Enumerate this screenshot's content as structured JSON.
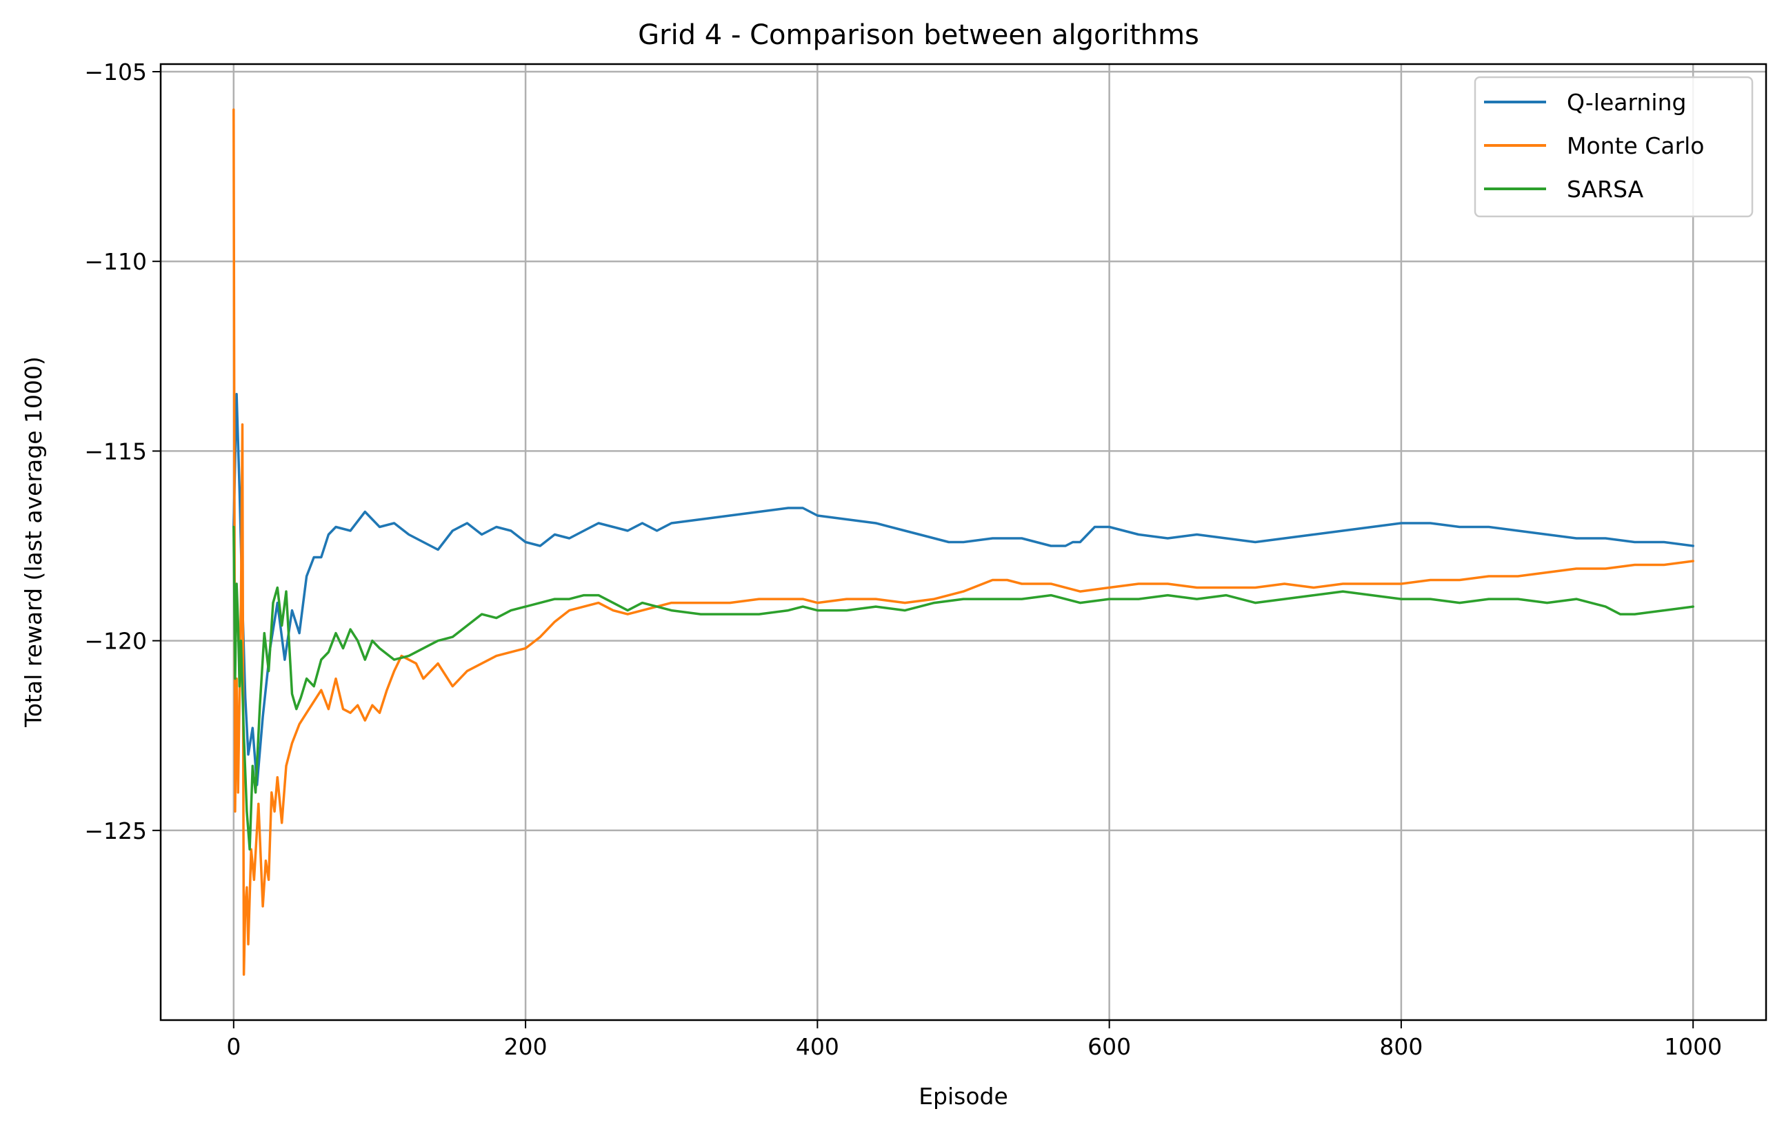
{
  "chart_data": {
    "type": "line",
    "title": "Grid 4 - Comparison between algorithms",
    "xlabel": "Episode",
    "ylabel": "Total reward (last average 1000)",
    "xlim": [
      -50,
      1050
    ],
    "ylim": [
      -130,
      -104.8
    ],
    "xticks": [
      0,
      200,
      400,
      600,
      800,
      1000
    ],
    "xtick_labels": [
      "0",
      "200",
      "400",
      "600",
      "800",
      "1000"
    ],
    "yticks": [
      -105,
      -110,
      -115,
      -120,
      -125
    ],
    "ytick_labels": [
      "−105",
      "−110",
      "−115",
      "−120",
      "−125"
    ],
    "grid": true,
    "legend_position": "top-right",
    "series": [
      {
        "name": "Q-learning",
        "color": "#1f77b4",
        "x": [
          0,
          2,
          4,
          6,
          8,
          10,
          13,
          16,
          20,
          25,
          30,
          35,
          40,
          45,
          50,
          55,
          60,
          65,
          70,
          80,
          90,
          95,
          100,
          110,
          120,
          130,
          140,
          150,
          160,
          170,
          180,
          190,
          200,
          210,
          220,
          230,
          240,
          250,
          260,
          270,
          280,
          290,
          300,
          320,
          340,
          360,
          380,
          390,
          400,
          420,
          440,
          460,
          480,
          490,
          500,
          520,
          540,
          560,
          570,
          575,
          580,
          590,
          600,
          620,
          640,
          660,
          680,
          700,
          720,
          740,
          760,
          780,
          800,
          820,
          840,
          860,
          880,
          900,
          920,
          940,
          960,
          980,
          1000
        ],
        "values": [
          -117,
          -113.5,
          -116,
          -119,
          -121.5,
          -123,
          -122.3,
          -123.8,
          -122,
          -120.2,
          -119,
          -120.5,
          -119.2,
          -119.8,
          -118.3,
          -117.8,
          -117.8,
          -117.2,
          -117,
          -117.1,
          -116.6,
          -116.8,
          -117,
          -116.9,
          -117.2,
          -117.4,
          -117.6,
          -117.1,
          -116.9,
          -117.2,
          -117,
          -117.1,
          -117.4,
          -117.5,
          -117.2,
          -117.3,
          -117.1,
          -116.9,
          -117.0,
          -117.1,
          -116.9,
          -117.1,
          -116.9,
          -116.8,
          -116.7,
          -116.6,
          -116.5,
          -116.5,
          -116.7,
          -116.8,
          -116.9,
          -117.1,
          -117.3,
          -117.4,
          -117.4,
          -117.3,
          -117.3,
          -117.5,
          -117.5,
          -117.4,
          -117.4,
          -117.0,
          -117.0,
          -117.2,
          -117.3,
          -117.2,
          -117.3,
          -117.4,
          -117.3,
          -117.2,
          -117.1,
          -117.0,
          -116.9,
          -116.9,
          -117.0,
          -117.0,
          -117.1,
          -117.2,
          -117.3,
          -117.3,
          -117.4,
          -117.4,
          -117.5
        ]
      },
      {
        "name": "Monte Carlo",
        "color": "#ff7f0e",
        "x": [
          0,
          1,
          2,
          3,
          5,
          6,
          7,
          8,
          9,
          10,
          12,
          14,
          17,
          20,
          22,
          24,
          26,
          28,
          30,
          33,
          36,
          40,
          45,
          50,
          55,
          60,
          65,
          70,
          75,
          80,
          85,
          90,
          95,
          100,
          105,
          110,
          115,
          120,
          125,
          130,
          140,
          150,
          160,
          170,
          180,
          190,
          200,
          210,
          220,
          230,
          240,
          250,
          260,
          270,
          280,
          290,
          300,
          320,
          340,
          360,
          380,
          390,
          400,
          420,
          440,
          460,
          480,
          500,
          520,
          530,
          540,
          560,
          580,
          600,
          620,
          640,
          660,
          680,
          700,
          720,
          740,
          760,
          780,
          800,
          820,
          840,
          860,
          880,
          900,
          920,
          940,
          960,
          980,
          1000
        ],
        "values": [
          -106,
          -124.5,
          -121,
          -124,
          -119,
          -114.3,
          -128.8,
          -127,
          -126.5,
          -128,
          -125.5,
          -126.3,
          -124.3,
          -127,
          -125.8,
          -126.3,
          -124,
          -124.5,
          -123.6,
          -124.8,
          -123.3,
          -122.7,
          -122.2,
          -121.9,
          -121.6,
          -121.3,
          -121.8,
          -121.0,
          -121.8,
          -121.9,
          -121.7,
          -122.1,
          -121.7,
          -121.9,
          -121.3,
          -120.8,
          -120.4,
          -120.5,
          -120.6,
          -121.0,
          -120.6,
          -121.2,
          -120.8,
          -120.6,
          -120.4,
          -120.3,
          -120.2,
          -119.9,
          -119.5,
          -119.2,
          -119.1,
          -119.0,
          -119.2,
          -119.3,
          -119.2,
          -119.1,
          -119.0,
          -119.0,
          -119.0,
          -118.9,
          -118.9,
          -118.9,
          -119.0,
          -118.9,
          -118.9,
          -119.0,
          -118.9,
          -118.7,
          -118.4,
          -118.4,
          -118.5,
          -118.5,
          -118.7,
          -118.6,
          -118.5,
          -118.5,
          -118.6,
          -118.6,
          -118.6,
          -118.5,
          -118.6,
          -118.5,
          -118.5,
          -118.5,
          -118.4,
          -118.4,
          -118.3,
          -118.3,
          -118.2,
          -118.1,
          -118.1,
          -118.0,
          -118.0,
          -117.9
        ]
      },
      {
        "name": "SARSA",
        "color": "#2ca02c",
        "x": [
          0,
          1,
          2,
          3,
          4,
          5,
          7,
          9,
          11,
          13,
          15,
          18,
          21,
          24,
          27,
          30,
          33,
          36,
          40,
          43,
          46,
          50,
          55,
          60,
          65,
          70,
          75,
          80,
          85,
          90,
          95,
          100,
          110,
          120,
          130,
          140,
          150,
          160,
          170,
          180,
          190,
          200,
          210,
          220,
          230,
          240,
          250,
          260,
          270,
          280,
          290,
          300,
          320,
          340,
          360,
          380,
          390,
          400,
          420,
          440,
          460,
          480,
          500,
          520,
          540,
          560,
          580,
          600,
          620,
          640,
          660,
          680,
          700,
          720,
          740,
          760,
          780,
          800,
          820,
          840,
          860,
          880,
          900,
          920,
          940,
          950,
          960,
          980,
          1000
        ],
        "values": [
          -117,
          -121,
          -118.5,
          -119.5,
          -121.2,
          -120,
          -122.5,
          -124.5,
          -125.5,
          -123.3,
          -124,
          -121.7,
          -119.8,
          -120.8,
          -119,
          -118.6,
          -119.6,
          -118.7,
          -121.4,
          -121.8,
          -121.5,
          -121.0,
          -121.2,
          -120.5,
          -120.3,
          -119.8,
          -120.2,
          -119.7,
          -120.0,
          -120.5,
          -120.0,
          -120.2,
          -120.5,
          -120.4,
          -120.2,
          -120.0,
          -119.9,
          -119.6,
          -119.3,
          -119.4,
          -119.2,
          -119.1,
          -119.0,
          -118.9,
          -118.9,
          -118.8,
          -118.8,
          -119.0,
          -119.2,
          -119.0,
          -119.1,
          -119.2,
          -119.3,
          -119.3,
          -119.3,
          -119.2,
          -119.1,
          -119.2,
          -119.2,
          -119.1,
          -119.2,
          -119.0,
          -118.9,
          -118.9,
          -118.9,
          -118.8,
          -119.0,
          -118.9,
          -118.9,
          -118.8,
          -118.9,
          -118.8,
          -119.0,
          -118.9,
          -118.8,
          -118.7,
          -118.8,
          -118.9,
          -118.9,
          -119.0,
          -118.9,
          -118.9,
          -119.0,
          -118.9,
          -119.1,
          -119.3,
          -119.3,
          -119.2,
          -119.1
        ]
      }
    ]
  }
}
